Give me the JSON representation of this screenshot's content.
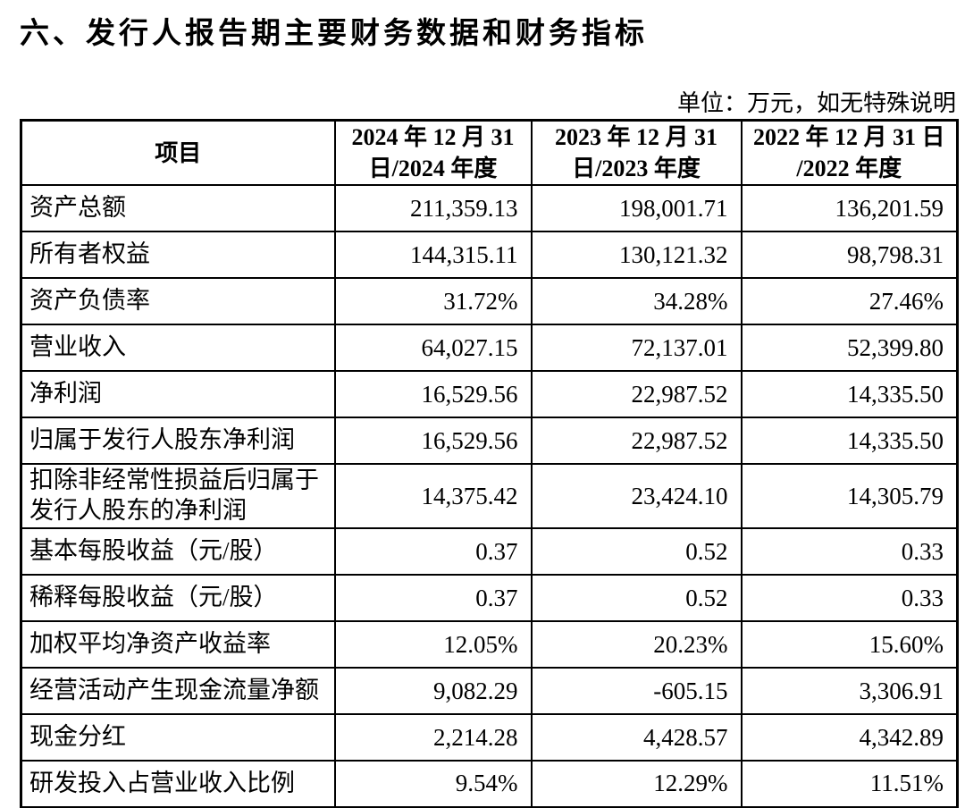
{
  "page": {
    "title": "六、发行人报告期主要财务数据和财务指标",
    "unit_note": "单位：万元，如无特殊说明"
  },
  "colors": {
    "text": "#000000",
    "border": "#000000",
    "background": "#ffffff"
  },
  "table": {
    "columns": [
      "项目",
      "2024 年 12 月 31\n日/2024 年度",
      "2023 年 12 月 31\n日/2023 年度",
      "2022 年 12 月 31 日\n/2022 年度"
    ],
    "rows": [
      {
        "label": "资产总额",
        "values": [
          "211,359.13",
          "198,001.71",
          "136,201.59"
        ]
      },
      {
        "label": "所有者权益",
        "values": [
          "144,315.11",
          "130,121.32",
          "98,798.31"
        ]
      },
      {
        "label": "资产负债率",
        "values": [
          "31.72%",
          "34.28%",
          "27.46%"
        ]
      },
      {
        "label": "营业收入",
        "values": [
          "64,027.15",
          "72,137.01",
          "52,399.80"
        ]
      },
      {
        "label": "净利润",
        "values": [
          "16,529.56",
          "22,987.52",
          "14,335.50"
        ]
      },
      {
        "label": "归属于发行人股东净利润",
        "values": [
          "16,529.56",
          "22,987.52",
          "14,335.50"
        ]
      },
      {
        "label": "扣除非经常性损益后归属于\n发行人股东的净利润",
        "tall": true,
        "values": [
          "14,375.42",
          "23,424.10",
          "14,305.79"
        ]
      },
      {
        "label": "基本每股收益（元/股）",
        "values": [
          "0.37",
          "0.52",
          "0.33"
        ]
      },
      {
        "label": "稀释每股收益（元/股）",
        "values": [
          "0.37",
          "0.52",
          "0.33"
        ]
      },
      {
        "label": "加权平均净资产收益率",
        "values": [
          "12.05%",
          "20.23%",
          "15.60%"
        ]
      },
      {
        "label": "经营活动产生现金流量净额",
        "values": [
          "9,082.29",
          "-605.15",
          "3,306.91"
        ]
      },
      {
        "label": "现金分红",
        "values": [
          "2,214.28",
          "4,428.57",
          "4,342.89"
        ]
      },
      {
        "label": "研发投入占营业收入比例",
        "values": [
          "9.54%",
          "12.29%",
          "11.51%"
        ]
      }
    ]
  }
}
